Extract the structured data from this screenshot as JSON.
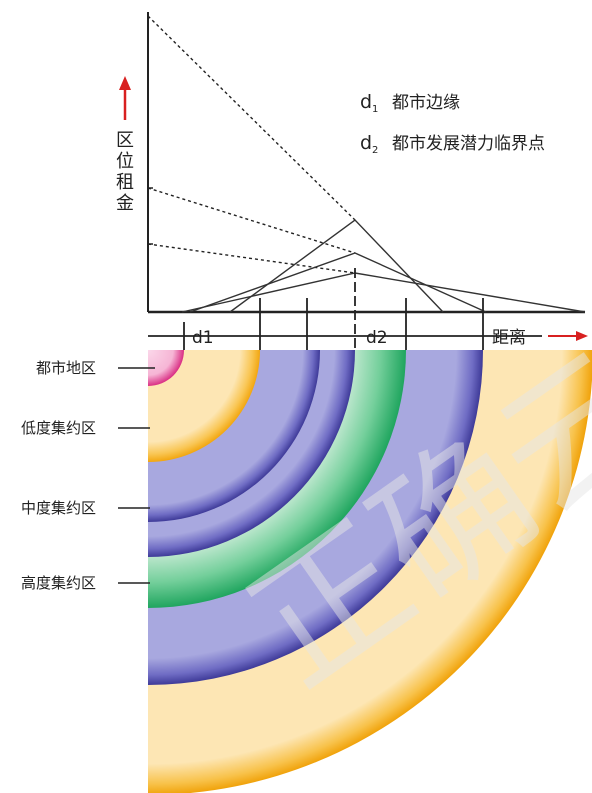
{
  "axis": {
    "y_label": [
      "区",
      "位",
      "租",
      "金"
    ],
    "x_label": "距离"
  },
  "legend": {
    "d1_symbol": "d",
    "d1_sub": "1",
    "d1_text": "都市边缘",
    "d2_symbol": "d",
    "d2_sub": "2",
    "d2_text": "都市发展潜力临界点"
  },
  "axis_markers": {
    "d1": "d1",
    "d2": "d2"
  },
  "zones": {
    "city": "都市地区",
    "low": "低度集约区",
    "mid": "中度集约区",
    "high": "高度集约区"
  },
  "watermark": "正确云",
  "colors": {
    "urban_pink": "#e23d8e",
    "low_orange": "#f7b521",
    "purple": "#4f4aa8",
    "green": "#2fb36e",
    "outer_band": "#f5b41c",
    "arrow_red": "#d82020"
  }
}
